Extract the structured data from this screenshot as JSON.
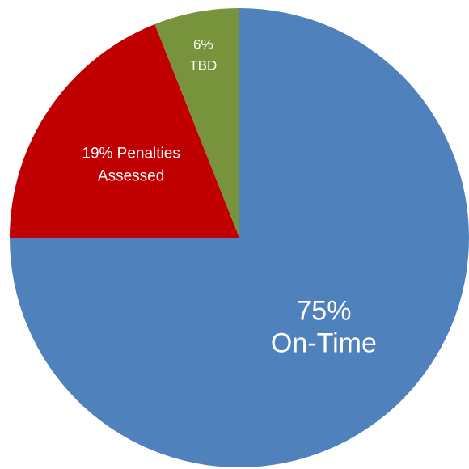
{
  "chart_data": {
    "type": "pie",
    "title": "",
    "slices": [
      {
        "name": "On-Time",
        "value": 75,
        "color": "#4f81bd",
        "label_lines": [
          "75%",
          "On-Time"
        ]
      },
      {
        "name": "Penalties Assessed",
        "value": 19,
        "color": "#c00000",
        "label_lines": [
          "19% Penalties",
          "Assessed"
        ]
      },
      {
        "name": "TBD",
        "value": 6,
        "color": "#77933c",
        "label_lines": [
          "6%",
          "TBD"
        ]
      }
    ],
    "start": "12 o'clock",
    "direction": "clockwise",
    "legend": "none"
  }
}
